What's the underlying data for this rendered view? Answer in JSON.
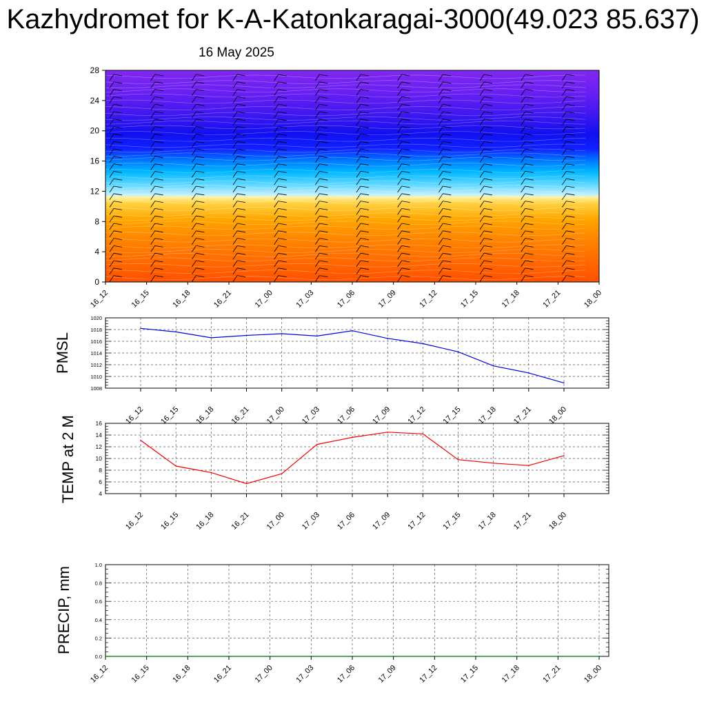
{
  "title": "Kazhydromet for K-A-Katonkaragai-3000(49.023 85.637)",
  "date": "16 May 2025",
  "colors": {
    "pmsl_line": "#0000dd",
    "temp_line": "#ee0000",
    "precip_line": "#006400",
    "contour_top": "#8020f0",
    "contour_bottom": "#ff5000"
  },
  "chart_data": [
    {
      "type": "heatmap",
      "name": "vertical-cross-section",
      "x_ticks": [
        "16_12",
        "16_15",
        "16_18",
        "16_21",
        "17_00",
        "17_03",
        "17_06",
        "17_09",
        "17_12",
        "17_15",
        "17_18",
        "17_21",
        "18_00"
      ],
      "y_ticks": [
        "0",
        "4",
        "8",
        "12",
        "16",
        "20",
        "24",
        "28"
      ],
      "ylim": [
        0,
        28
      ],
      "wind_barbs": true
    },
    {
      "type": "line",
      "ylabel": "PMSL",
      "x": [
        "16_12",
        "16_15",
        "16_18",
        "16_21",
        "17_00",
        "17_03",
        "17_06",
        "17_09",
        "17_12",
        "17_15",
        "17_18",
        "17_21",
        "18_00"
      ],
      "values": [
        1018.2,
        1017.6,
        1016.6,
        1017.0,
        1017.3,
        1016.9,
        1017.8,
        1016.5,
        1015.6,
        1014.2,
        1011.8,
        1010.6,
        1008.9
      ],
      "y_ticks": [
        "1008",
        "1010",
        "1012",
        "1014",
        "1016",
        "1018",
        "1020"
      ],
      "ylim": [
        1008,
        1020
      ],
      "grid": true
    },
    {
      "type": "line",
      "ylabel": "TEMP at 2 M",
      "x": [
        "16_12",
        "16_15",
        "16_18",
        "16_21",
        "17_00",
        "17_03",
        "17_06",
        "17_09",
        "17_12",
        "17_15",
        "17_18",
        "17_21",
        "18_00"
      ],
      "values": [
        13.1,
        8.7,
        7.6,
        5.7,
        7.4,
        12.4,
        13.6,
        14.5,
        14.2,
        9.8,
        9.2,
        8.8,
        10.5
      ],
      "y_ticks": [
        "4",
        "6",
        "8",
        "10",
        "12",
        "14",
        "16"
      ],
      "ylim": [
        4,
        16
      ],
      "grid": true
    },
    {
      "type": "line",
      "ylabel": "PRECIP, mm",
      "x": [
        "16_12",
        "16_15",
        "16_18",
        "16_21",
        "17_00",
        "17_03",
        "17_06",
        "17_09",
        "17_12",
        "17_15",
        "17_18",
        "17_21",
        "18_00"
      ],
      "values": [
        0,
        0,
        0,
        0,
        0,
        0,
        0,
        0,
        0,
        0,
        0,
        0,
        0
      ],
      "y_ticks": [
        "0.0",
        "0.2",
        "0.4",
        "0.6",
        "0.8",
        "1.0"
      ],
      "ylim": [
        0,
        1
      ],
      "grid": true
    }
  ]
}
